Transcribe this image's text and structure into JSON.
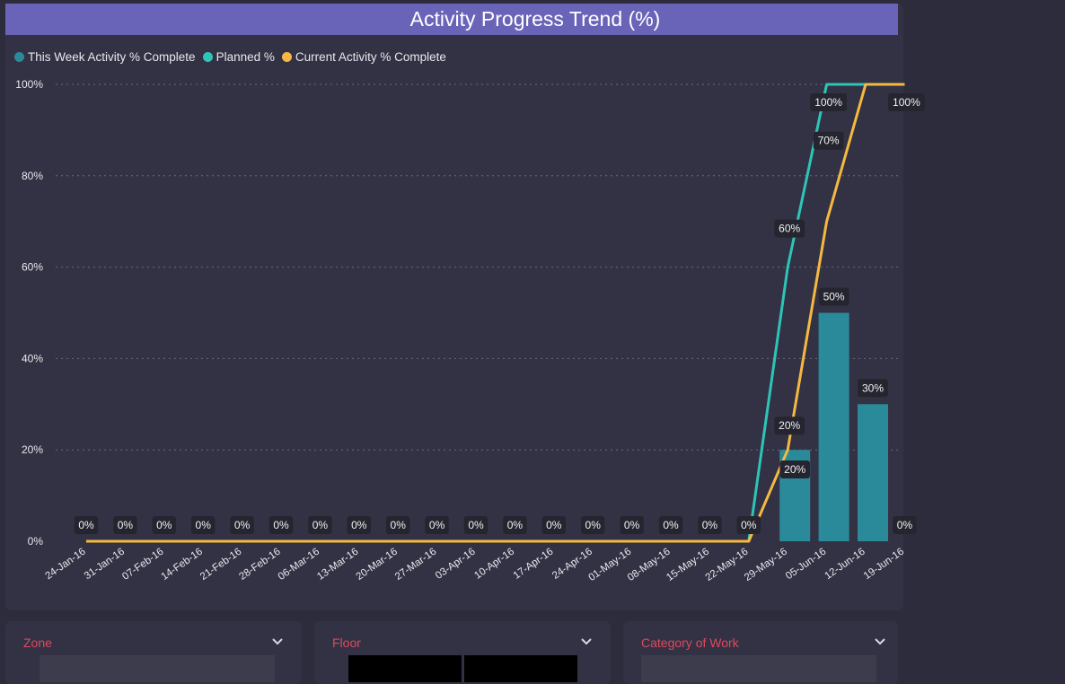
{
  "title": "Activity Progress Trend (%)",
  "legend": [
    {
      "label": "This Week Activity % Complete",
      "color": "#2a8a9a"
    },
    {
      "label": "Planned %",
      "color": "#2ec4b6"
    },
    {
      "label": "Current Activity % Complete",
      "color": "#f5b942"
    }
  ],
  "filters": [
    {
      "label": "Zone"
    },
    {
      "label": "Floor"
    },
    {
      "label": "Category of Work"
    }
  ],
  "chart_data": {
    "type": "bar",
    "categories": [
      "24-Jan-16",
      "31-Jan-16",
      "07-Feb-16",
      "14-Feb-16",
      "21-Feb-16",
      "28-Feb-16",
      "06-Mar-16",
      "13-Mar-16",
      "20-Mar-16",
      "27-Mar-16",
      "03-Apr-16",
      "10-Apr-16",
      "17-Apr-16",
      "24-Apr-16",
      "01-May-16",
      "08-May-16",
      "15-May-16",
      "22-May-16",
      "29-May-16",
      "05-Jun-16",
      "12-Jun-16",
      "19-Jun-16"
    ],
    "ylim": [
      0,
      100
    ],
    "yticks": [
      "0%",
      "20%",
      "40%",
      "60%",
      "80%",
      "100%"
    ],
    "grid": true,
    "legend_position": "top-left",
    "series": [
      {
        "name": "This Week Activity % Complete",
        "type": "bar",
        "color": "#2a8a9a",
        "values": [
          0,
          0,
          0,
          0,
          0,
          0,
          0,
          0,
          0,
          0,
          0,
          0,
          0,
          0,
          0,
          0,
          0,
          0,
          20,
          50,
          30,
          0
        ],
        "labels": [
          "0%",
          "0%",
          "0%",
          "0%",
          "0%",
          "0%",
          "0%",
          "0%",
          "0%",
          "0%",
          "0%",
          "0%",
          "0%",
          "0%",
          "0%",
          "0%",
          "0%",
          "0%",
          "20%",
          "50%",
          "30%",
          "0%"
        ]
      },
      {
        "name": "Planned %",
        "type": "line",
        "color": "#2ec4b6",
        "values": [
          0,
          0,
          0,
          0,
          0,
          0,
          0,
          0,
          0,
          0,
          0,
          0,
          0,
          0,
          0,
          0,
          0,
          0,
          60,
          100,
          100,
          100
        ],
        "labels": [
          "",
          "",
          "",
          "",
          "",
          "",
          "",
          "",
          "",
          "",
          "",
          "",
          "",
          "",
          "",
          "",
          "",
          "",
          "60%",
          "100%",
          "",
          ""
        ]
      },
      {
        "name": "Current Activity % Complete",
        "type": "line",
        "color": "#f5b942",
        "values": [
          0,
          0,
          0,
          0,
          0,
          0,
          0,
          0,
          0,
          0,
          0,
          0,
          0,
          0,
          0,
          0,
          0,
          0,
          20,
          70,
          100,
          100
        ],
        "labels": [
          "",
          "",
          "",
          "",
          "",
          "",
          "",
          "",
          "",
          "",
          "",
          "",
          "",
          "",
          "",
          "",
          "",
          "",
          "20%",
          "70%",
          "",
          "100%"
        ]
      }
    ]
  }
}
